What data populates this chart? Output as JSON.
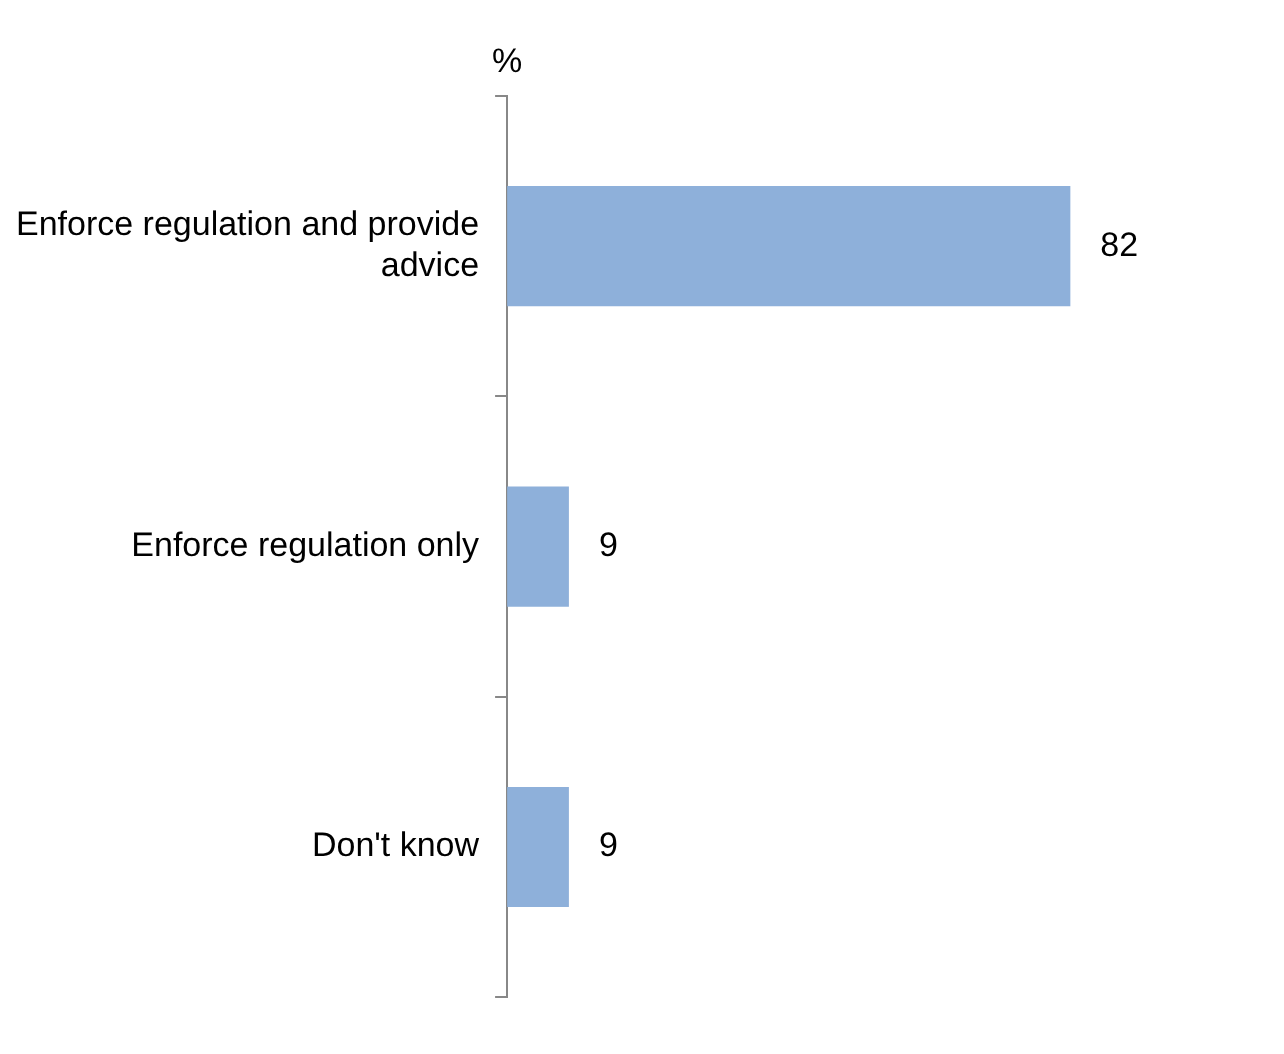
{
  "chart_data": {
    "type": "bar",
    "orientation": "horizontal",
    "xlabel": "%",
    "categories": [
      "Enforce regulation and provide advice",
      "Enforce regulation only",
      "Don't know"
    ],
    "values": [
      82,
      9,
      9
    ],
    "color": "#8eb0da",
    "data_labels": true,
    "grid": false,
    "legend": false
  }
}
